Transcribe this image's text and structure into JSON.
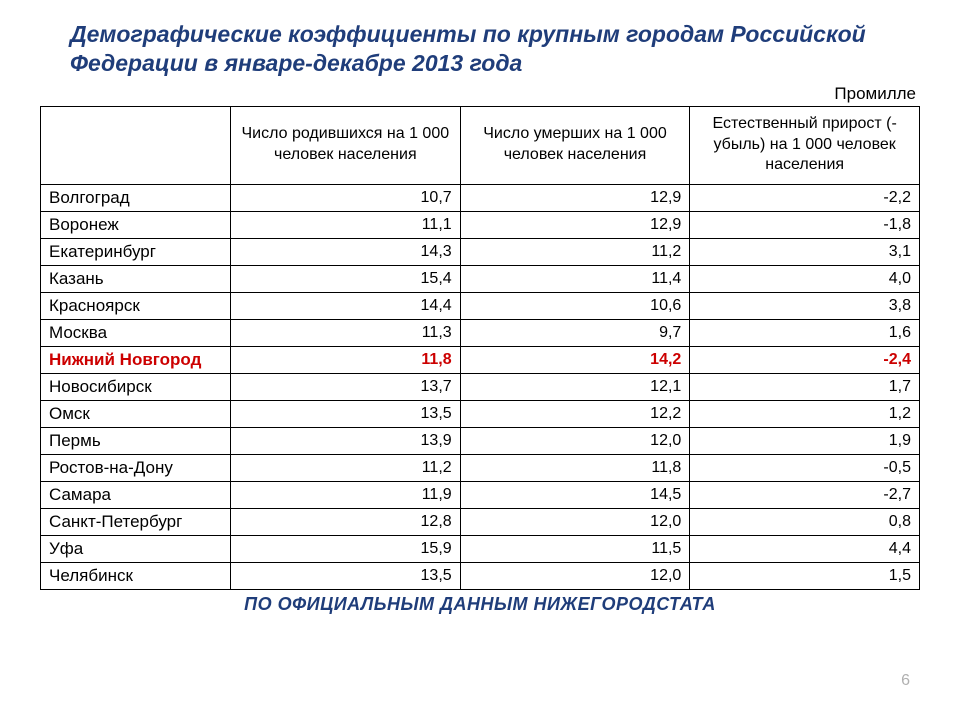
{
  "title": "Демографические коэффициенты по крупным городам Российской Федерации в январе-декабре 2013 года",
  "unit": "Промилле",
  "columns": [
    "",
    "Число родившихся на 1 000 человек населения",
    "Число умерших на 1 000 человек населения",
    "Естественный прирост (- убыль) на 1 000 человек населения"
  ],
  "col_widths": [
    "190px",
    "",
    "",
    ""
  ],
  "highlight_row_index": 6,
  "highlight_color": "#cc0000",
  "text_color": "#000000",
  "title_color": "#1f3d7a",
  "border_color": "#000000",
  "rows": [
    {
      "city": "Волгоград",
      "births": "10,7",
      "deaths": "12,9",
      "growth": "-2,2"
    },
    {
      "city": "Воронеж",
      "births": "11,1",
      "deaths": "12,9",
      "growth": "-1,8"
    },
    {
      "city": "Екатеринбург",
      "births": "14,3",
      "deaths": "11,2",
      "growth": "3,1"
    },
    {
      "city": "Казань",
      "births": "15,4",
      "deaths": "11,4",
      "growth": "4,0"
    },
    {
      "city": "Красноярск",
      "births": "14,4",
      "deaths": "10,6",
      "growth": "3,8"
    },
    {
      "city": "Москва",
      "births": "11,3",
      "deaths": "9,7",
      "growth": "1,6"
    },
    {
      "city": "Нижний Новгород",
      "births": "11,8",
      "deaths": "14,2",
      "growth": "-2,4"
    },
    {
      "city": "Новосибирск",
      "births": "13,7",
      "deaths": "12,1",
      "growth": "1,7"
    },
    {
      "city": "Омск",
      "births": "13,5",
      "deaths": "12,2",
      "growth": "1,2"
    },
    {
      "city": "Пермь",
      "births": "13,9",
      "deaths": "12,0",
      "growth": "1,9"
    },
    {
      "city": "Ростов-на-Дону",
      "births": "11,2",
      "deaths": "11,8",
      "growth": "-0,5"
    },
    {
      "city": "Самара",
      "births": "11,9",
      "deaths": "14,5",
      "growth": "-2,7"
    },
    {
      "city": "Санкт-Петербург",
      "births": "12,8",
      "deaths": "12,0",
      "growth": "0,8"
    },
    {
      "city": "Уфа",
      "births": "15,9",
      "deaths": "11,5",
      "growth": "4,4"
    },
    {
      "city": "Челябинск",
      "births": "13,5",
      "deaths": "12,0",
      "growth": "1,5"
    }
  ],
  "footer": "ПО ОФИЦИАЛЬНЫМ ДАННЫМ НИЖЕГОРОДСТАТА",
  "page_number": "6"
}
